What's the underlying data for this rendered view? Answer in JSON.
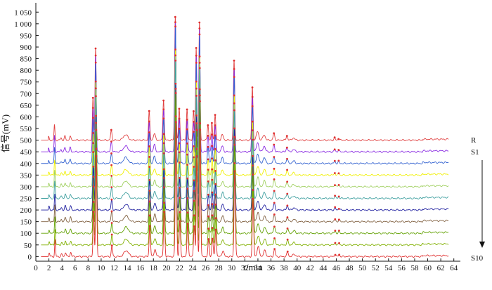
{
  "chart_data": {
    "type": "line",
    "title": "",
    "xlabel_italic": "t",
    "xlabel_unit": "/min",
    "ylabel": "信号(mV)",
    "xlim": [
      0,
      65
    ],
    "ylim": [
      -20,
      1090
    ],
    "x_ticks": [
      0,
      2,
      4,
      6,
      8,
      10,
      12,
      14,
      16,
      18,
      20,
      22,
      24,
      26,
      28,
      30,
      32,
      34,
      36,
      38,
      40,
      42,
      44,
      46,
      48,
      50,
      52,
      54,
      56,
      58,
      60,
      62,
      64
    ],
    "y_ticks": [
      {
        "value": 0,
        "label": "0"
      },
      {
        "value": 50,
        "label": "50"
      },
      {
        "value": 100,
        "label": "100"
      },
      {
        "value": 150,
        "label": "150"
      },
      {
        "value": 200,
        "label": "200"
      },
      {
        "value": 250,
        "label": "250"
      },
      {
        "value": 300,
        "label": "300"
      },
      {
        "value": 350,
        "label": "350"
      },
      {
        "value": 400,
        "label": "400"
      },
      {
        "value": 450,
        "label": "450"
      },
      {
        "value": 500,
        "label": "500"
      },
      {
        "value": 550,
        "label": "550"
      },
      {
        "value": 600,
        "label": "600"
      },
      {
        "value": 650,
        "label": "650"
      },
      {
        "value": 700,
        "label": "700"
      },
      {
        "value": 750,
        "label": "750"
      },
      {
        "value": 800,
        "label": "800"
      },
      {
        "value": 850,
        "label": "850"
      },
      {
        "value": 900,
        "label": "900"
      },
      {
        "value": 950,
        "label": "950"
      },
      {
        "value": 1000,
        "label": "1 000"
      },
      {
        "value": 1050,
        "label": "1 050"
      }
    ],
    "grid": false,
    "legend": "none",
    "trace_labels": {
      "top": "R",
      "second": "S1",
      "bottom": "S10"
    },
    "arrow": "downward from S1 to S10",
    "series": [
      {
        "id": "R",
        "offset": 500,
        "color": "#e04040"
      },
      {
        "id": "S1",
        "offset": 450,
        "color": "#8a2be2"
      },
      {
        "id": "S2",
        "offset": 400,
        "color": "#3060d0"
      },
      {
        "id": "S3",
        "offset": 350,
        "color": "#f0f000"
      },
      {
        "id": "S4",
        "offset": 300,
        "color": "#a0d060"
      },
      {
        "id": "S5",
        "offset": 250,
        "color": "#40a0a0"
      },
      {
        "id": "S6",
        "offset": 200,
        "color": "#2020a0"
      },
      {
        "id": "S7",
        "offset": 150,
        "color": "#806040"
      },
      {
        "id": "S8",
        "offset": 100,
        "color": "#60a000"
      },
      {
        "id": "S9",
        "offset": 50,
        "color": "#80b000"
      },
      {
        "id": "S10",
        "offset": 0,
        "color": "#e03030"
      }
    ],
    "peaks": [
      {
        "t": 2.0,
        "h": 15,
        "w": 0.08
      },
      {
        "t": 2.9,
        "h": 70,
        "w": 0.07
      },
      {
        "t": 3.9,
        "h": 10,
        "w": 0.1
      },
      {
        "t": 4.5,
        "h": 18,
        "w": 0.1
      },
      {
        "t": 5.3,
        "h": 18,
        "w": 0.1
      },
      {
        "t": 8.8,
        "h": 190,
        "w": 0.09,
        "marker": true
      },
      {
        "t": 9.2,
        "h": 420,
        "w": 0.09,
        "marker": true
      },
      {
        "t": 11.6,
        "h": 45,
        "w": 0.1,
        "marker": true
      },
      {
        "t": 13.8,
        "h": 25,
        "w": 0.35
      },
      {
        "t": 17.4,
        "h": 130,
        "w": 0.1,
        "marker": true
      },
      {
        "t": 18.2,
        "h": 30,
        "w": 0.15
      },
      {
        "t": 19.6,
        "h": 185,
        "w": 0.1,
        "marker": true
      },
      {
        "t": 21.4,
        "h": 565,
        "w": 0.1,
        "marker": true
      },
      {
        "t": 22.0,
        "h": 145,
        "w": 0.1,
        "marker": true
      },
      {
        "t": 23.2,
        "h": 140,
        "w": 0.1,
        "marker": true
      },
      {
        "t": 24.2,
        "h": 130,
        "w": 0.1,
        "marker": true
      },
      {
        "t": 24.6,
        "h": 420,
        "w": 0.09,
        "marker": true
      },
      {
        "t": 25.1,
        "h": 535,
        "w": 0.09,
        "marker": true
      },
      {
        "t": 26.4,
        "h": 70,
        "w": 0.1,
        "marker": true
      },
      {
        "t": 27.0,
        "h": 75,
        "w": 0.1,
        "marker": true
      },
      {
        "t": 27.5,
        "h": 115,
        "w": 0.1,
        "marker": true
      },
      {
        "t": 28.6,
        "h": 25,
        "w": 0.15
      },
      {
        "t": 30.4,
        "h": 360,
        "w": 0.1,
        "marker": true
      },
      {
        "t": 33.2,
        "h": 240,
        "w": 0.1,
        "marker": true
      },
      {
        "t": 34.0,
        "h": 40,
        "w": 0.18
      },
      {
        "t": 35.0,
        "h": 25,
        "w": 0.18
      },
      {
        "t": 36.5,
        "h": 30,
        "w": 0.12,
        "marker": true
      },
      {
        "t": 38.5,
        "h": 20,
        "w": 0.12,
        "marker": true
      },
      {
        "t": 39.5,
        "h": 10,
        "w": 0.2
      },
      {
        "t": 45.8,
        "h": 10,
        "w": 0.1,
        "marker": true
      },
      {
        "t": 46.4,
        "h": 8,
        "w": 0.1,
        "marker": true
      }
    ],
    "baseline": {
      "t": 59.2,
      "step": 4
    }
  }
}
